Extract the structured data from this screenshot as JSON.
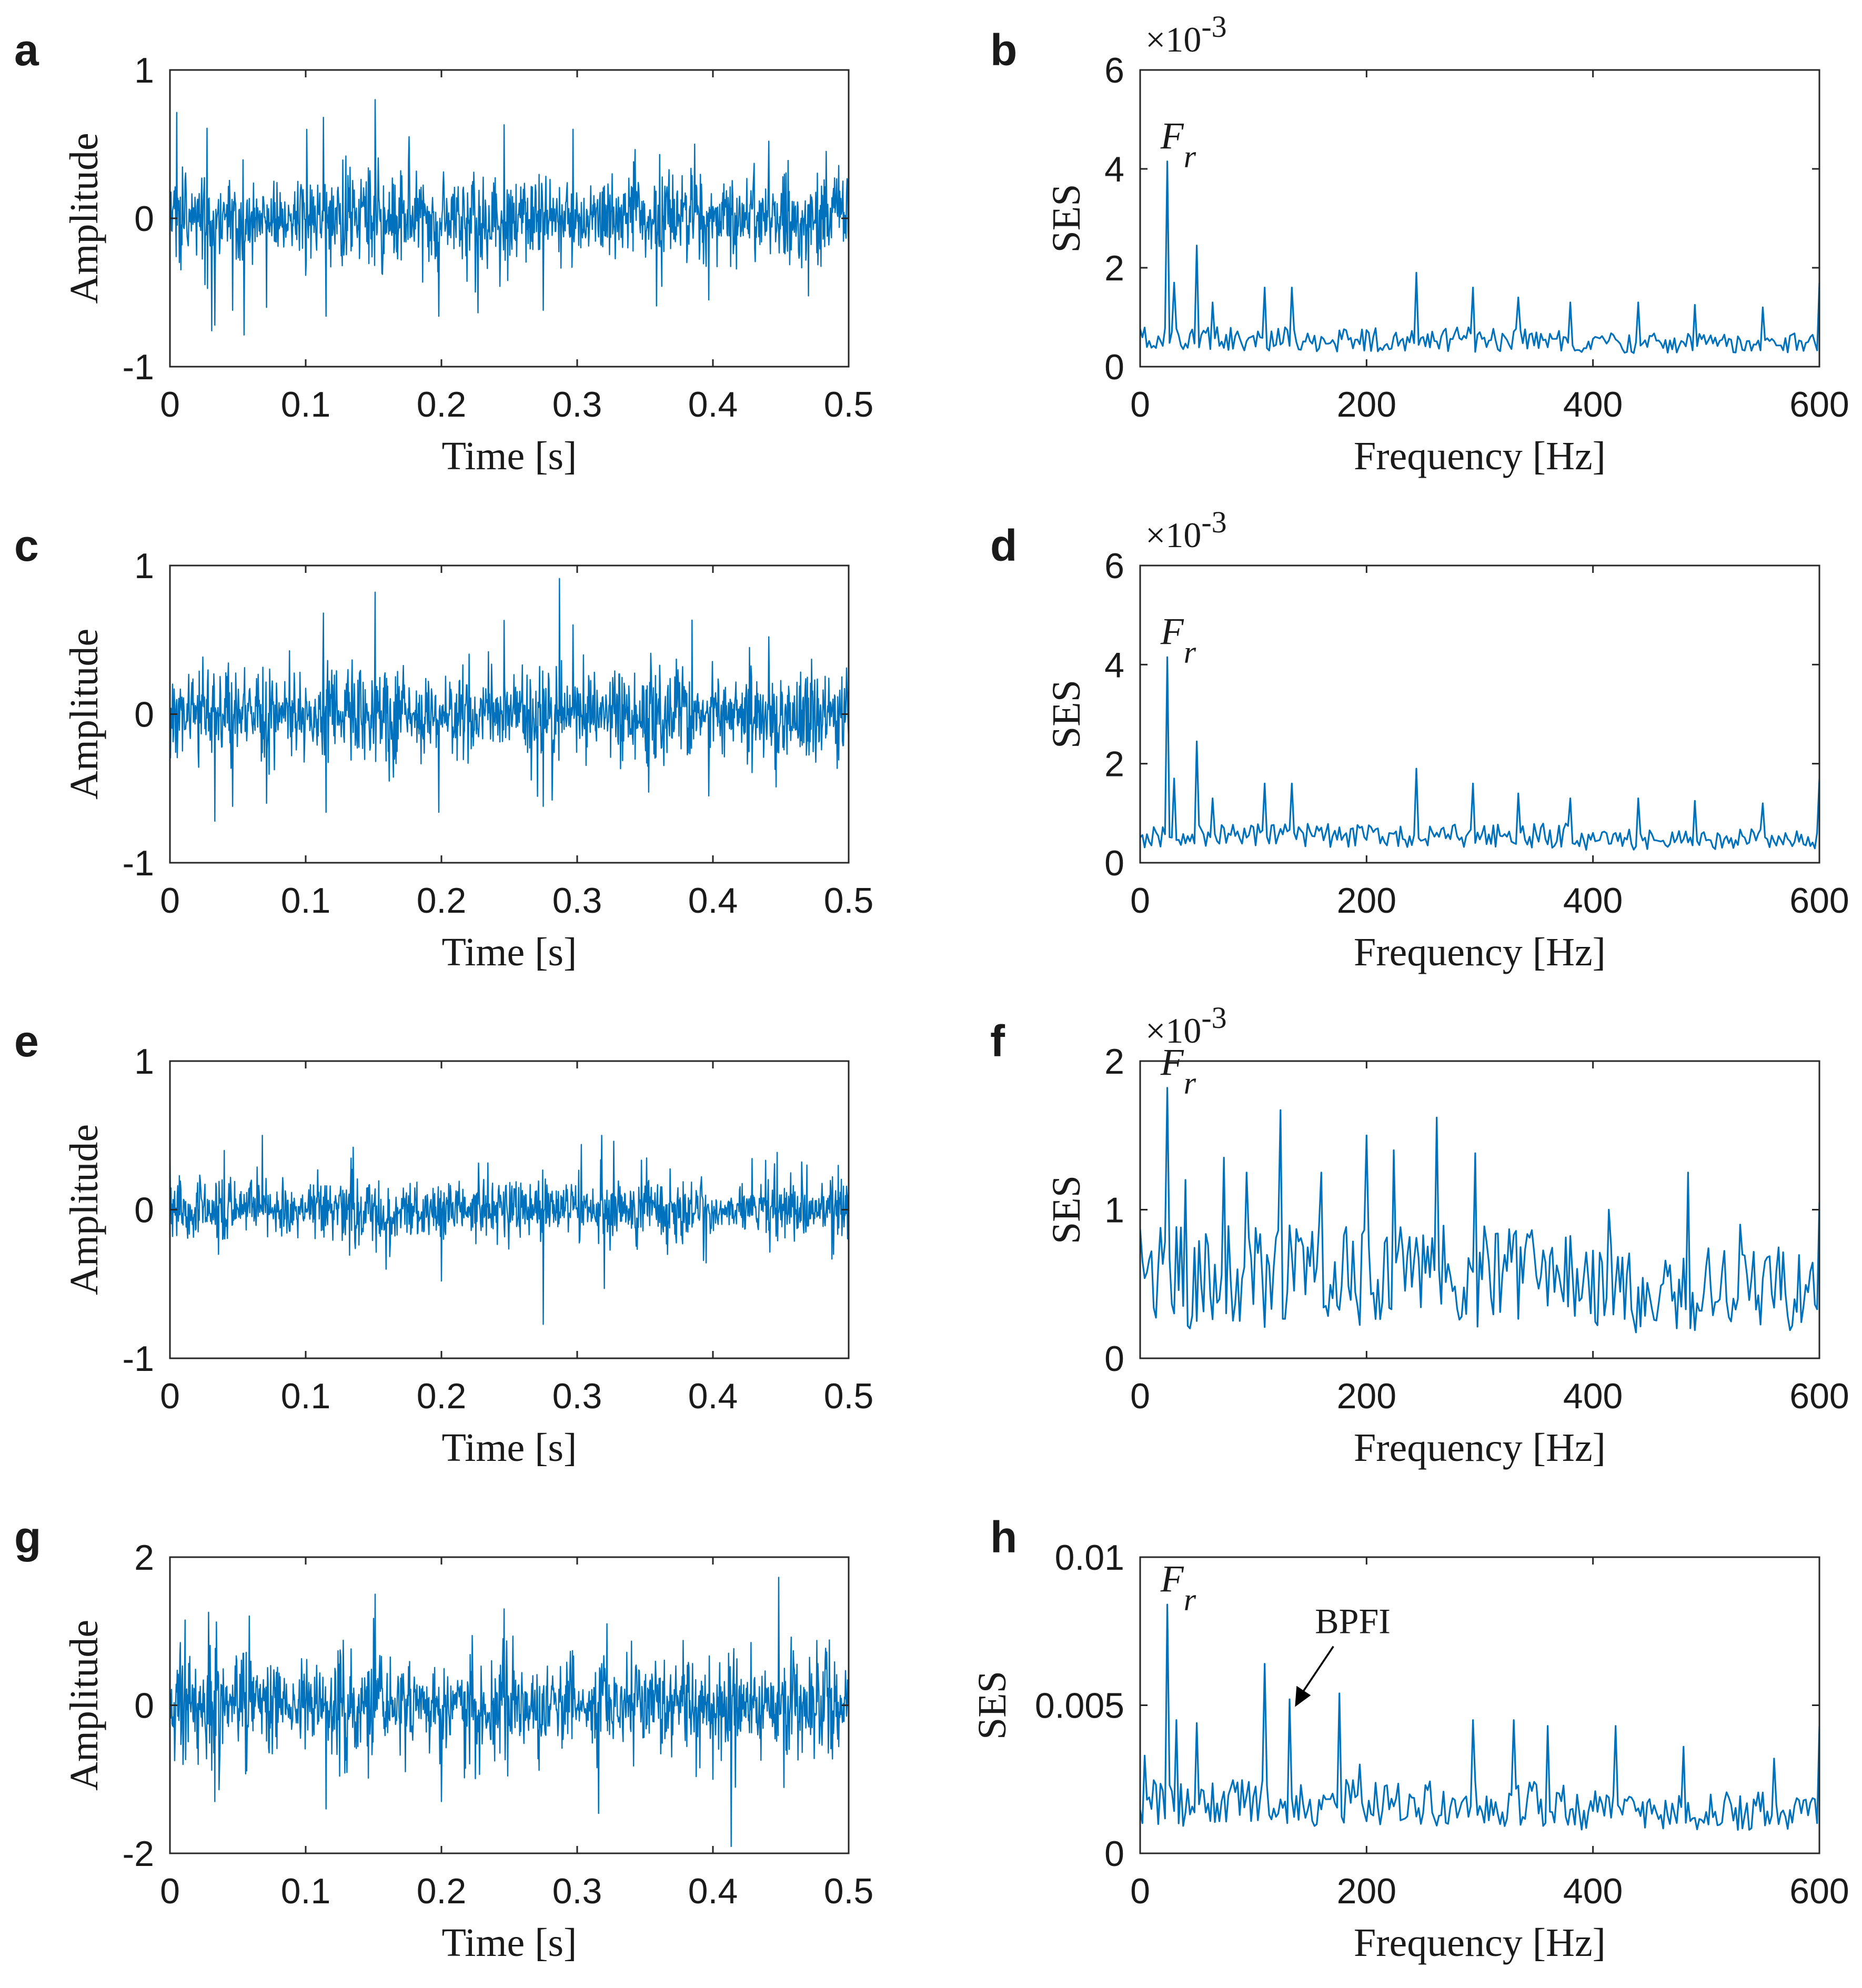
{
  "figure": {
    "trace_color": "#0072BD",
    "axis_color": "#262626"
  },
  "chart_data": [
    {
      "panel": "a",
      "type": "line",
      "signal": "time_waveform",
      "xlabel": "Time [s]",
      "ylabel": "Amplitude",
      "xlim": [
        0,
        0.5
      ],
      "ylim": [
        -1,
        1
      ],
      "xticks": [
        "0",
        "0.1",
        "0.2",
        "0.3",
        "0.4",
        "0.5"
      ],
      "yticks": [
        "-1",
        "0",
        "1"
      ],
      "noise_level": 0.14,
      "peaks": [
        {
          "x": 0.033,
          "y": -0.72
        },
        {
          "x": 0.046,
          "y": -0.62
        },
        {
          "x": 0.071,
          "y": -0.6
        },
        {
          "x": 0.113,
          "y": 0.68
        },
        {
          "x": 0.115,
          "y": -0.66
        },
        {
          "x": 0.151,
          "y": 0.8
        },
        {
          "x": 0.176,
          "y": 0.55
        },
        {
          "x": 0.198,
          "y": -0.66
        },
        {
          "x": 0.246,
          "y": 0.63
        },
        {
          "x": 0.275,
          "y": -0.62
        },
        {
          "x": 0.297,
          "y": 0.6
        },
        {
          "x": 0.397,
          "y": -0.55
        },
        {
          "x": 0.441,
          "y": 0.52
        }
      ]
    },
    {
      "panel": "b",
      "type": "line",
      "signal": "squared_envelope_spectrum",
      "xlabel": "Frequency [Hz]",
      "ylabel": "SES",
      "exponent_label": "×10-3",
      "xlim": [
        0,
        600
      ],
      "ylim": [
        0,
        6
      ],
      "xticks": [
        "0",
        "200",
        "400",
        "600"
      ],
      "yticks": [
        "0",
        "2",
        "4",
        "6"
      ],
      "baseline": 0.55,
      "noise": 0.25,
      "peaks": [
        {
          "x": 25,
          "y": 4.15
        },
        {
          "x": 31,
          "y": 1.7
        },
        {
          "x": 50,
          "y": 2.45
        },
        {
          "x": 65,
          "y": 1.3
        },
        {
          "x": 110,
          "y": 1.6
        },
        {
          "x": 135,
          "y": 1.6
        },
        {
          "x": 245,
          "y": 1.9
        },
        {
          "x": 295,
          "y": 1.6
        },
        {
          "x": 335,
          "y": 1.4
        },
        {
          "x": 380,
          "y": 1.3
        },
        {
          "x": 440,
          "y": 1.3
        },
        {
          "x": 490,
          "y": 1.25
        },
        {
          "x": 550,
          "y": 1.2
        },
        {
          "x": 600,
          "y": 1.7
        }
      ],
      "annotations": [
        {
          "label": "F",
          "subscript": "r",
          "x": 25,
          "y": 4.15
        }
      ]
    },
    {
      "panel": "c",
      "type": "line",
      "signal": "time_waveform",
      "xlabel": "Time [s]",
      "ylabel": "Amplitude",
      "xlim": [
        0,
        0.5
      ],
      "ylim": [
        -1,
        1
      ],
      "xticks": [
        "0",
        "0.1",
        "0.2",
        "0.3",
        "0.4",
        "0.5"
      ],
      "yticks": [
        "-1",
        "0",
        "1"
      ],
      "noise_level": 0.14,
      "peaks": [
        {
          "x": 0.033,
          "y": -0.72
        },
        {
          "x": 0.046,
          "y": -0.62
        },
        {
          "x": 0.071,
          "y": -0.6
        },
        {
          "x": 0.113,
          "y": 0.68
        },
        {
          "x": 0.115,
          "y": -0.66
        },
        {
          "x": 0.151,
          "y": 0.82
        },
        {
          "x": 0.198,
          "y": -0.66
        },
        {
          "x": 0.246,
          "y": 0.63
        },
        {
          "x": 0.275,
          "y": -0.62
        },
        {
          "x": 0.297,
          "y": 0.6
        },
        {
          "x": 0.397,
          "y": -0.55
        },
        {
          "x": 0.441,
          "y": 0.52
        }
      ]
    },
    {
      "panel": "d",
      "type": "line",
      "signal": "squared_envelope_spectrum",
      "xlabel": "Frequency [Hz]",
      "ylabel": "SES",
      "exponent_label": "×10-3",
      "xlim": [
        0,
        600
      ],
      "ylim": [
        0,
        6
      ],
      "xticks": [
        "0",
        "200",
        "400",
        "600"
      ],
      "yticks": [
        "0",
        "2",
        "4",
        "6"
      ],
      "baseline": 0.55,
      "noise": 0.25,
      "peaks": [
        {
          "x": 25,
          "y": 4.15
        },
        {
          "x": 31,
          "y": 1.7
        },
        {
          "x": 50,
          "y": 2.45
        },
        {
          "x": 65,
          "y": 1.3
        },
        {
          "x": 110,
          "y": 1.6
        },
        {
          "x": 135,
          "y": 1.6
        },
        {
          "x": 245,
          "y": 1.9
        },
        {
          "x": 295,
          "y": 1.6
        },
        {
          "x": 335,
          "y": 1.4
        },
        {
          "x": 380,
          "y": 1.3
        },
        {
          "x": 440,
          "y": 1.3
        },
        {
          "x": 490,
          "y": 1.25
        },
        {
          "x": 550,
          "y": 1.2
        },
        {
          "x": 600,
          "y": 1.7
        }
      ],
      "annotations": [
        {
          "label": "F",
          "subscript": "r",
          "x": 25,
          "y": 4.15
        }
      ]
    },
    {
      "panel": "e",
      "type": "line",
      "signal": "time_waveform",
      "xlabel": "Time [s]",
      "ylabel": "Amplitude",
      "xlim": [
        0,
        0.5
      ],
      "ylim": [
        -1,
        1
      ],
      "xticks": [
        "0",
        "0.1",
        "0.2",
        "0.3",
        "0.4",
        "0.5"
      ],
      "yticks": [
        "-1",
        "0",
        "1"
      ],
      "noise_level": 0.1,
      "peaks": [
        {
          "x": 0.0,
          "y": 0.5
        },
        {
          "x": 0.068,
          "y": 0.5
        },
        {
          "x": 0.135,
          "y": 0.42
        },
        {
          "x": 0.2,
          "y": -0.48
        },
        {
          "x": 0.32,
          "y": -0.53
        },
        {
          "x": 0.318,
          "y": 0.5
        }
      ]
    },
    {
      "panel": "f",
      "type": "line",
      "signal": "squared_envelope_spectrum",
      "xlabel": "Frequency [Hz]",
      "ylabel": "SES",
      "exponent_label": "×10-3",
      "xlim": [
        0,
        600
      ],
      "ylim": [
        0,
        2
      ],
      "xticks": [
        "0",
        "200",
        "400",
        "600"
      ],
      "yticks": [
        "0",
        "1",
        "2"
      ],
      "baseline": 0.55,
      "noise": 0.35,
      "peaks": [
        {
          "x": 25,
          "y": 1.82
        },
        {
          "x": 40,
          "y": 1.2
        },
        {
          "x": 75,
          "y": 1.35
        },
        {
          "x": 95,
          "y": 1.25
        },
        {
          "x": 125,
          "y": 1.67
        },
        {
          "x": 160,
          "y": 1.25
        },
        {
          "x": 200,
          "y": 1.5
        },
        {
          "x": 225,
          "y": 1.4
        },
        {
          "x": 262,
          "y": 1.62
        },
        {
          "x": 297,
          "y": 1.38
        },
        {
          "x": 415,
          "y": 1.0
        },
        {
          "x": 485,
          "y": 1.25
        },
        {
          "x": 530,
          "y": 0.9
        },
        {
          "x": 600,
          "y": 1.05
        }
      ],
      "annotations": [
        {
          "label": "F",
          "subscript": "r",
          "x": 25,
          "y": 1.82
        }
      ]
    },
    {
      "panel": "g",
      "type": "line",
      "signal": "time_waveform",
      "xlabel": "Time [s]",
      "ylabel": "Amplitude",
      "xlim": [
        0,
        0.5
      ],
      "ylim": [
        -2,
        2
      ],
      "xticks": [
        "0",
        "0.1",
        "0.2",
        "0.3",
        "0.4",
        "0.5"
      ],
      "yticks": [
        "-2",
        "0",
        "2"
      ],
      "noise_level": 0.3,
      "peaks": [
        {
          "x": 0.011,
          "y": 1.15
        },
        {
          "x": 0.033,
          "y": -1.3
        },
        {
          "x": 0.115,
          "y": -1.4
        },
        {
          "x": 0.151,
          "y": 1.5
        },
        {
          "x": 0.2,
          "y": -1.3
        },
        {
          "x": 0.246,
          "y": 1.3
        },
        {
          "x": 0.322,
          "y": 1.1
        },
        {
          "x": 0.4,
          "y": -1.0
        }
      ]
    },
    {
      "panel": "h",
      "type": "line",
      "signal": "squared_envelope_spectrum",
      "xlabel": "Frequency [Hz]",
      "ylabel": "SES",
      "xlim": [
        0,
        600
      ],
      "ylim": [
        0,
        0.01
      ],
      "xticks": [
        "0",
        "200",
        "400",
        "600"
      ],
      "yticks": [
        "0",
        "0.005",
        "0.01"
      ],
      "baseline": 0.0017,
      "noise": 0.0008,
      "peaks": [
        {
          "x": 5,
          "y": 0.0033
        },
        {
          "x": 25,
          "y": 0.0084
        },
        {
          "x": 33,
          "y": 0.0045
        },
        {
          "x": 50,
          "y": 0.0044
        },
        {
          "x": 110,
          "y": 0.0064
        },
        {
          "x": 133,
          "y": 0.0052
        },
        {
          "x": 177,
          "y": 0.0054
        },
        {
          "x": 195,
          "y": 0.003
        },
        {
          "x": 295,
          "y": 0.0045
        },
        {
          "x": 330,
          "y": 0.0045
        },
        {
          "x": 360,
          "y": 0.0043
        },
        {
          "x": 420,
          "y": 0.0043
        },
        {
          "x": 480,
          "y": 0.0036
        },
        {
          "x": 560,
          "y": 0.0032
        },
        {
          "x": 600,
          "y": 0.0043
        }
      ],
      "annotations": [
        {
          "label": "F",
          "subscript": "r",
          "x": 25,
          "y": 0.0084
        },
        {
          "label": "BPFI",
          "x": 147,
          "y": 0.0053,
          "arrow": true
        }
      ]
    }
  ]
}
